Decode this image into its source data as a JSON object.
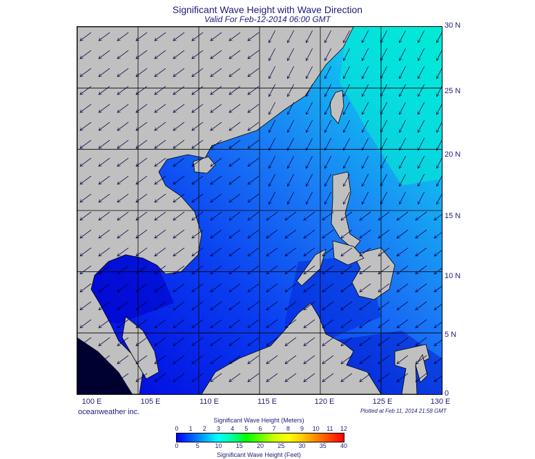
{
  "header": {
    "title": "Significant Wave Height with Wave Direction",
    "subtitle": "Valid For Feb-12-2014 06:00 GMT"
  },
  "map": {
    "lon_range": [
      100,
      130
    ],
    "lat_range": [
      0,
      30
    ],
    "lat_labels": [
      "30 N",
      "25 N",
      "20 N",
      "15 N",
      "10 N",
      "5 N",
      "0"
    ],
    "lon_labels": [
      "100 E",
      "105 E",
      "110 E",
      "115 E",
      "120 E",
      "125 E",
      "130 E"
    ],
    "land_color": "#c0c0c0",
    "wave_direction": "toward south-west"
  },
  "footer": {
    "credit": "oceanweather inc.",
    "plotted": "Plotted at Feb 11, 2014 21:58 GMT"
  },
  "colorbar": {
    "title_meters": "Significant Wave Height (Meters)",
    "title_feet": "Significant Wave Height (Feet)",
    "meter_ticks": [
      "0",
      "1",
      "2",
      "3",
      "4",
      "5",
      "6",
      "7",
      "8",
      "9",
      "10",
      "11",
      "12"
    ],
    "feet_ticks": [
      "0",
      "5",
      "10",
      "15",
      "20",
      "25",
      "30",
      "35",
      "40"
    ],
    "colors": [
      "#0000ff",
      "#0055ff",
      "#00aaff",
      "#00ffff",
      "#00ff99",
      "#00ff00",
      "#66ff00",
      "#ccff00",
      "#ffff00",
      "#ffcc00",
      "#ff8800",
      "#ff4400",
      "#ff0000"
    ]
  }
}
